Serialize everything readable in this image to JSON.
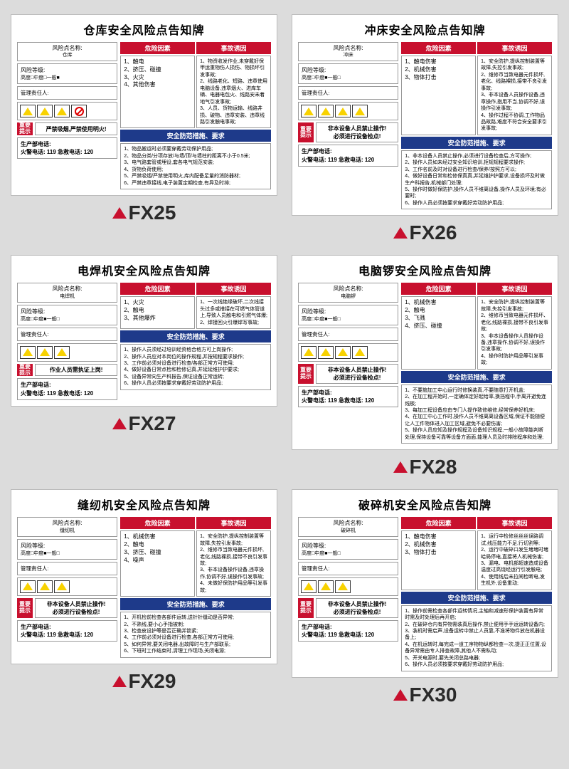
{
  "cards": [
    {
      "code": "FX25",
      "title": "仓库安全风险点告知牌",
      "risk_name_label": "风险点名称:",
      "risk_name": "仓库",
      "risk_level_label": "风险等级:",
      "risk_level": "高度□中度□一般■",
      "manager_label": "管理责任人:",
      "hazard_header": "危险因素",
      "cause_header": "事故诱因",
      "hazards": "1、触电\n2、挤压、碰撞\n3、火灾\n4、其他伤害",
      "causes": "1、物资收发作业,未穿戴好保甲运重物伤人损伤、物损坏引发事故;\n2、线路老化、短路、违章使用电脑设备,违章烟火、进库车辆、电器电包火、线路安未着地气引发事故;\n3、人员、货物运输、线路井损、破物、违章安装、违章线路引发触电事故;",
      "measures_header": "安全防范措施、要求",
      "measures": "1、物品搬运时必须要穿戴劳动保护用品;\n2、物品分类/分项存放/与墙/顶/与墙柱的距离不小于0.5米;\n3、电气路套管或埋设,套各电气规范安装;\n4、货物负荷使用;\n5、严禁吸烟/严禁使用明火,库内配备足量的消防器材;\n6、严禁违章接线,电子装置定期检查,有异及时排;",
      "tips_label": "重要\n提示",
      "tips": "严禁吸烟,严禁使用明火!",
      "dept_phone": "生产部电话:",
      "fire_phone": "火警电话: 119   急救电话: 120",
      "icon_count": 4,
      "has_forbid": true
    },
    {
      "code": "FX26",
      "title": "冲床安全风险点告知牌",
      "risk_name_label": "风险点名称:",
      "risk_name": "冲床",
      "risk_level_label": "风险等级:",
      "risk_level": "高度□中度■一般□",
      "manager_label": "管理责任人:",
      "hazard_header": "危险因素",
      "cause_header": "事故诱因",
      "hazards": "1、触电伤害\n2、机械伤害\n3、物体打击",
      "causes": "1、安全防护,提纵控制装置等故障,失控引发事故;\n2、维修币当致电器元件损坏,老化、线路裸损,接带不良引发事故;\n3、非本设备人员操作设备,违章操作,指用不当,协调不好,误操作引发事故;\n4、操作过程不协调,工作物品品故路,难度不符合安全要求引发事故;",
      "measures_header": "安全防范措施、要求",
      "measures": "1、非本设备人员禁止操作,必须进行设备检查后,方可操作;\n2、操作人员如未经过安全知识培训,拒规规程要求操作;\n3、工作名前及时对设备进行检查/保养/按照方可以;\n4、做好设备日常和检修保真真,并延维护护要求,设备损坏及时做生产科报告,机械部门处理;\n5、操作时做好保防护,操作人员不维离设备,操作人员及环境;有必要时;\n6、操作人员必须按要求穿戴好劳动防护用品;",
      "tips_label": "重要\n提示",
      "tips": "非本设备人员禁止操作!\n必须进行设备检点!",
      "dept_phone": "生产部电话:",
      "fire_phone": "火警电话: 119   急救电话: 120",
      "icon_count": 4,
      "has_forbid": false
    },
    {
      "code": "FX27",
      "title": "电焊机安全风险点告知牌",
      "risk_name_label": "风险点名称:",
      "risk_name": "电焊机",
      "risk_level_label": "风险等级:",
      "risk_level": "高度□中度■一般□",
      "manager_label": "管理责任人:",
      "hazard_header": "危险因素",
      "cause_header": "事故诱因",
      "hazards": "1、火灾\n2、触电\n3、其他爆炸",
      "causes": "1、一次线绝缘破坏,二次线接头过多或搭接在可燃气体管道上,导致人员触电和引燃气体爆;\n2、焊接回火引爆焊写事故;",
      "measures_header": "安全防范措施、要求",
      "measures": "1、操作人员须经过培训经资格合格方可上岗操作;\n2、操作人员应对本岗位的操作规程,并按规程要求操作;\n3、工作前必须对设备进行检查/各部正常方可使用;\n4、做好设备日常点检和检修记真,并延延维护护要求;\n5、设备异常向生产科报告,保证设备正常运转;\n6、操作人员必须按要求穿戴好劳动防护用品;",
      "tips_label": "重要\n提示",
      "tips": "作业人员需执证上岗!",
      "dept_phone": "生产部电话:",
      "fire_phone": "火警电话: 119   急救电话: 120",
      "icon_count": 3,
      "has_forbid": false
    },
    {
      "code": "FX28",
      "title": "电脑锣安全风险点告知牌",
      "risk_name_label": "风险点名称:",
      "risk_name": "电脑锣",
      "risk_level_label": "风险等级:",
      "risk_level": "高度□中度■一般□",
      "manager_label": "管理责任人:",
      "hazard_header": "危险因素",
      "cause_header": "事故诱因",
      "hazards": "1、机械伤害\n2、触电\n3、飞溅\n4、挤压、碰撞",
      "causes": "1、安全防护,提纵控制装置等故障,失控引发事故;\n2、维修币当致电器元件损坏、老化,线路裸损,接带不良引发事故;\n3、非本设备操作人员操作设备,违章操作,协调不好,误操作引发事故;\n4、操作时防护用品等引发事故;",
      "measures_header": "安全防范措施、要求",
      "measures": "1、不要施加工中心运行时修换装真,不要随意打开机盖;\n2、在加工程开始时,一定确体定好起给率,换挡程中,手离开避免连线板;\n3、每加工程设备应由专门人提作致修维修,经常保养好机床;\n4、在加工中心工作时,操作人员不维离离设备区域,保证不能随便让人工件物体进入加工区域,避免不必要伤害;\n5、操作人员应知及操作规程及设备知识规程,一般小故障能判断处理,保持设备可靠等设备方面面,能理人员及时排除程序和处理;",
      "tips_label": "重要\n提示",
      "tips": "非本设备人员禁止操作!\n必须进行设备检点!",
      "dept_phone": "生产部电话:",
      "fire_phone": "火警电话: 119   急救电话: 120",
      "icon_count": 4,
      "has_forbid": false
    },
    {
      "code": "FX29",
      "title": "缝纫机安全风险点告知牌",
      "risk_name_label": "风险点名称:",
      "risk_name": "缝纫机",
      "risk_level_label": "风险等级:",
      "risk_level": "高度□中度■一般□",
      "manager_label": "管理责任人:",
      "hazard_header": "危险因素",
      "cause_header": "事故诱因",
      "hazards": "1、机械伤害\n2、触电\n3、挤压、碰撞\n4、噪声",
      "causes": "1、安全防护,提纵控制装置等故障,失控引发事故;\n2、维修币当致电器元件损坏,老化,线路裸损,接带不良引发事故;\n3、非本设备操作设备,违章操作,协调不好,误操作引发事故;\n4、未做好保防护用品等引发事故;",
      "measures_header": "安全防范措施、要求",
      "measures": "1、开机检前检查各部件运转,送针针缝动是否异常;\n2、不熟线,要小心手指被刺;\n3、检查皮设护等是否正确并锁紧;\n4、工作前必须对设备进行检查,各部正常方可使用;\n5、如何异常,要关闭电器,出故障时与生产部联系;\n6、下班时工作结束时,清理工作现场,关闭电源;",
      "tips_label": "重要\n提示",
      "tips": "非本设备人员禁止操作!\n必须进行设备检点!",
      "dept_phone": "生产部电话:",
      "fire_phone": "火警电话: 119   急救电话: 120",
      "icon_count": 3,
      "has_forbid": false
    },
    {
      "code": "FX30",
      "title": "破碎机安全风险点告知牌",
      "risk_name_label": "风险点名称:",
      "risk_name": "破碎机",
      "risk_level_label": "风险等级:",
      "risk_level": "高度□中度■一般□",
      "manager_label": "管理责任人:",
      "hazard_header": "危险因素",
      "cause_header": "事故诱因",
      "hazards": "1、触电伤害\n2、机械伤害\n3、物体打击",
      "causes": "1、运行中检修丝丝丝误路调试,线压能力不足,行切割等;\n2、运行中破碎口发生堵堵时堵峆局停电,直接将人机械伤害;\n3、漏电、电机部超速造成设备温度过高烧经运行引发触电;\n4、使用线后未拉闸检断电,发生机外,设备重动;",
      "measures_header": "安全防范措施、要求",
      "measures": "1、操作前需检查各部件运转情况,主轴和减速形保护装置有异常时需及时处理后再开启;\n2、在破碎仓内有异物需装真后操作,禁止便用手手运运转设备内;\n3、装机时需启声,设备运转中禁止人员靠,不准将物件放在机器设备上;\n4、在机运转时,每完成一道工序物物纵都检查一次,提正正位置,设备异常需由专人排查故障,其他人不需私动;\n5、开关电源时,要先关闭总路电器;\n6、操作人员必须按要求穿戴好劳动防护用品;",
      "tips_label": "重要\n提示",
      "tips": "非本设备人员禁止操作!\n必须进行设备检点!",
      "dept_phone": "生产部电话:",
      "fire_phone": "火警电话: 119   急救电话: 120",
      "icon_count": 3,
      "has_forbid": false
    }
  ]
}
